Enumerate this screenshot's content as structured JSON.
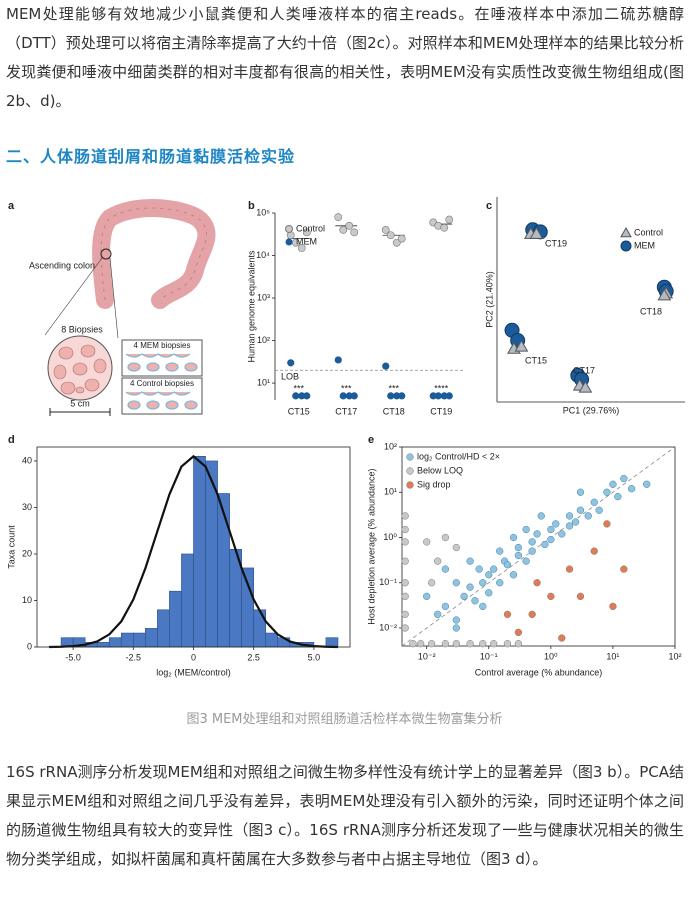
{
  "paragraphs": [
    "MEM处理能够有效地减少小鼠粪便和人类唾液样本的宿主reads。在唾液样本中添加二硫苏糖醇（DTT）预处理可以将宿主清除率提高了大约十倍（图2c）。对照样本和MEM处理样本的结果比较分析发现粪便和唾液中细菌类群的相对丰度都有很高的相关性，表明MEM没有实质性改变微生物组组成(图2b、d)。",
    "16S rRNA测序分析发现MEM组和对照组之间微生物多样性没有统计学上的显著差异（图3 b）。PCA结果显示MEM组和对照组之间几乎没有差异，表明MEM处理没有引入额外的污染，同时还证明个体之间的肠道微生物组具有较大的变异性（图3 c）。16S rRNA测序分析还发现了一些与健康状况相关的微生物分类学组成，如拟杆菌属和真杆菌属在大多数参与者中占据主导地位（图3 d）。"
  ],
  "heading": "二、人体肠道刮屑和肠道黏膜活检实验",
  "panel_a": {
    "letter": "a",
    "colon_label": "Ascending colon",
    "biopsies": "8 Biopsies",
    "mem_biopsies": "4 MEM biopsies",
    "control_biopsies": "4 Control biopsies",
    "scale": "5 cm"
  },
  "chart_data": [
    {
      "type": "dot",
      "panel": "b",
      "ylabel": "Human genome equivalents",
      "log_y": true,
      "categories": [
        "CT15",
        "CT17",
        "CT18",
        "CT19"
      ],
      "ylim": [
        4,
        100000
      ],
      "yticks": [
        {
          "value": 10,
          "label": "10¹"
        },
        {
          "value": 100,
          "label": "10²"
        },
        {
          "value": 1000,
          "label": "10³"
        },
        {
          "value": 10000,
          "label": "10⁴"
        },
        {
          "value": 100000,
          "label": "10⁵"
        }
      ],
      "series": [
        {
          "name": "Control",
          "color": "#c9c9c9",
          "values": [
            [
              30000,
              20000,
              15000,
              35000
            ],
            [
              80000,
              40000,
              50000,
              35000
            ],
            [
              40000,
              30000,
              20000,
              25000
            ],
            [
              60000,
              50000,
              45000,
              70000
            ]
          ]
        },
        {
          "name": "MEM",
          "color": "#1c5b99",
          "values": [
            [
              30,
              5,
              5,
              5
            ],
            [
              35,
              5,
              5,
              5
            ],
            [
              25,
              5,
              5,
              5
            ],
            [
              5,
              5,
              5,
              5
            ]
          ]
        }
      ],
      "medians": [
        25000,
        50000,
        30000,
        55000
      ],
      "lob": {
        "value": 20,
        "label": "LOB"
      },
      "annotations": [
        "***",
        "***",
        "***",
        "****"
      ]
    },
    {
      "type": "pca",
      "panel": "c",
      "xlabel": "PC1 (29.76%)",
      "ylabel": "PC2 (21.40%)",
      "xlim": [
        0,
        100
      ],
      "ylim": [
        0,
        100
      ],
      "series": [
        {
          "name": "Control",
          "color": "#b3bcc5",
          "marker": "triangle",
          "x": [
            18,
            21,
            90,
            89,
            9,
            13,
            44,
            47
          ],
          "values": [
            82,
            82,
            53,
            52,
            26,
            27,
            8,
            7
          ]
        },
        {
          "name": "MEM",
          "color": "#1c5b99",
          "marker": "circle",
          "x": [
            19,
            23,
            89,
            90,
            8,
            11,
            43,
            45
          ],
          "values": [
            84,
            83,
            56,
            54,
            35,
            30,
            13,
            11
          ]
        }
      ],
      "labels": [
        "CT19",
        "CT18",
        "CT15",
        "CT17"
      ]
    },
    {
      "type": "histogram",
      "panel": "d",
      "xlabel": "log₂ (MEM/control)",
      "ylabel": "Taxa count",
      "color": "#4a78c2",
      "bins": [
        -5.5,
        -5,
        -4.5,
        -4,
        -3.5,
        -3,
        -2.5,
        -2,
        -1.5,
        -1,
        -0.5,
        0,
        0.5,
        1,
        1.5,
        2,
        2.5,
        3,
        3.5,
        4,
        4.5,
        5,
        5.5,
        6
      ],
      "values": [
        2,
        2,
        1,
        1,
        2,
        3,
        3,
        4,
        8,
        12,
        20,
        41,
        40,
        33,
        21,
        17,
        8,
        3,
        2,
        1,
        1,
        0,
        2
      ],
      "curve": {
        "x": [
          -6,
          -5.5,
          -5,
          -4.5,
          -4,
          -3.5,
          -3,
          -2.5,
          -2,
          -1.5,
          -1,
          -0.5,
          0,
          0.5,
          1,
          1.5,
          2,
          2.5,
          3,
          3.5,
          4,
          4.5,
          5,
          5.5,
          6
        ],
        "values": [
          0,
          0.05,
          0.2,
          0.5,
          1.2,
          2.7,
          5.5,
          10.2,
          16.9,
          24.9,
          32.8,
          38.8,
          41,
          38.8,
          32.8,
          24.9,
          16.9,
          10.2,
          5.5,
          2.7,
          1.2,
          0.5,
          0.2,
          0.05,
          0
        ]
      },
      "xlim": [
        -6.5,
        6.5
      ],
      "ylim": [
        0,
        43
      ],
      "xticks": [
        {
          "value": -5,
          "label": "-5.0"
        },
        -2.5,
        0,
        2.5,
        {
          "value": 5,
          "label": "5.0"
        }
      ],
      "yticks": [
        0,
        10,
        20,
        30,
        40
      ]
    },
    {
      "type": "scatter",
      "panel": "e",
      "xlabel": "Control average (% abundance)",
      "ylabel": "Host depletion average (% abundance)",
      "log_x": true,
      "log_y": true,
      "xlim": [
        0.004,
        100
      ],
      "ylim": [
        0.004,
        100
      ],
      "xticks": [
        {
          "value": 0.01,
          "label": "10⁻²"
        },
        {
          "value": 0.1,
          "label": "10⁻¹"
        },
        {
          "value": 1,
          "label": "10⁰"
        },
        {
          "value": 10,
          "label": "10¹"
        },
        {
          "value": 100,
          "label": "10²"
        }
      ],
      "yticks": [
        {
          "value": 0.01,
          "label": "10⁻²"
        },
        {
          "value": 0.1,
          "label": "10⁻¹"
        },
        {
          "value": 1,
          "label": "10⁰"
        },
        {
          "value": 10,
          "label": "10¹"
        },
        {
          "value": 100,
          "label": "10²"
        }
      ],
      "series": [
        {
          "name": "log₂ Control/HD < 2×",
          "color": "#8fc3df",
          "x": [
            0.015,
            0.02,
            0.03,
            0.04,
            0.05,
            0.06,
            0.08,
            0.1,
            0.1,
            0.12,
            0.15,
            0.18,
            0.2,
            0.25,
            0.3,
            0.3,
            0.4,
            0.5,
            0.5,
            0.6,
            0.8,
            1,
            1,
            1.2,
            1.5,
            2,
            2,
            2.5,
            3,
            4,
            5,
            6,
            8,
            10,
            12,
            15,
            20,
            0.02,
            0.05,
            0.01,
            0.03,
            0.07,
            0.15,
            0.25,
            0.4,
            0.03,
            0.08,
            35,
            3,
            0.7
          ],
          "values": [
            0.02,
            0.03,
            0.015,
            0.05,
            0.08,
            0.04,
            0.1,
            0.15,
            0.06,
            0.2,
            0.1,
            0.3,
            0.25,
            0.15,
            0.4,
            0.6,
            0.3,
            0.8,
            0.5,
            1.2,
            0.7,
            1.5,
            0.9,
            2,
            1.2,
            3,
            1.8,
            2.2,
            4,
            3,
            6,
            4,
            10,
            15,
            8,
            20,
            12,
            0.2,
            0.3,
            0.05,
            0.1,
            0.2,
            0.5,
            1,
            1.5,
            0.01,
            0.03,
            15,
            10,
            3
          ]
        },
        {
          "name": "Below LOQ",
          "color": "#c8c8c8",
          "x": [
            0.0045,
            0.0045,
            0.0045,
            0.0045,
            0.0045,
            0.0045,
            0.0045,
            0.0045,
            0.006,
            0.008,
            0.012,
            0.02,
            0.03,
            0.05,
            0.08,
            0.12,
            0.2,
            0.3,
            0.01,
            0.02,
            0.015,
            0.012,
            0.03
          ],
          "values": [
            0.02,
            0.05,
            0.1,
            0.3,
            0.8,
            1.5,
            0.01,
            3,
            0.0045,
            0.0045,
            0.0045,
            0.0045,
            0.0045,
            0.0045,
            0.0045,
            0.0045,
            0.0045,
            0.0045,
            0.8,
            1,
            0.3,
            0.1,
            0.6
          ]
        },
        {
          "name": "Sig drop",
          "color": "#e07b54",
          "x": [
            0.3,
            0.5,
            1,
            0.2,
            2,
            3,
            5,
            8,
            10,
            15,
            1.5,
            0.6
          ],
          "values": [
            0.008,
            0.02,
            0.05,
            0.02,
            0.2,
            0.05,
            0.5,
            2,
            0.03,
            0.2,
            0.006,
            0.1
          ]
        }
      ]
    }
  ],
  "caption": "图3 MEM处理组和对照组肠道活检样本微生物富集分析"
}
